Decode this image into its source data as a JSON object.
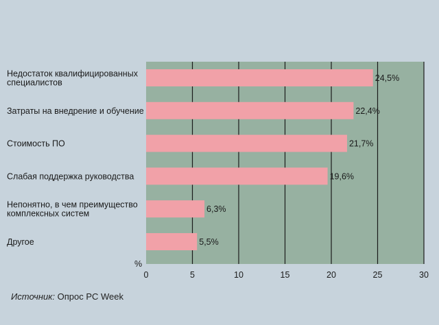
{
  "chart_data": {
    "type": "bar",
    "orientation": "horizontal",
    "categories": [
      [
        "Недостаток квалифицированных",
        "специалистов"
      ],
      [
        "Затраты на внедрение и обучение"
      ],
      [
        "Стоимость ПО"
      ],
      [
        "Слабая поддержка руководства"
      ],
      [
        "Непонятно, в чем преимущество",
        "комплексных систем"
      ],
      [
        "Другое"
      ]
    ],
    "values": [
      24.5,
      22.4,
      21.7,
      19.6,
      6.3,
      5.5
    ],
    "data_labels": [
      "24,5%",
      "22,4%",
      "21,7%",
      "19,6%",
      "6,3%",
      "5,5%"
    ],
    "xlim": [
      0,
      30
    ],
    "x_ticks": [
      0,
      5,
      10,
      15,
      20,
      25,
      30
    ],
    "x_unit_label": "%",
    "grid": true,
    "colors": {
      "background": "#c7d3dc",
      "plot_background": "#97b1a1",
      "bar": "#f1a1a8",
      "grid": "#1a1a1a"
    }
  },
  "source": {
    "label": "Источник:",
    "text": "Опрос PC Week"
  }
}
